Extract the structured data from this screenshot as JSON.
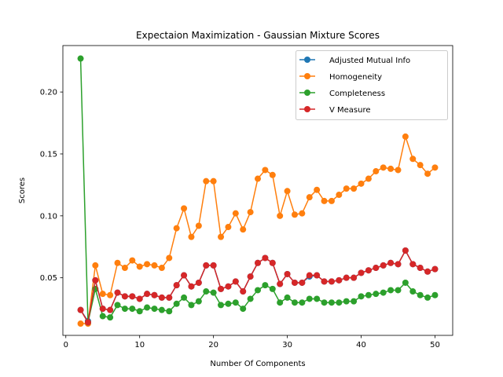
{
  "chart_data": {
    "type": "line",
    "title": "Expectaion Maximization - Gaussian Mixture Scores",
    "xlabel": "Number Of Components",
    "ylabel": "Scores",
    "xlim": [
      -0.4,
      52.4
    ],
    "ylim": [
      0.0035,
      0.2375
    ],
    "xticks": [
      0,
      10,
      20,
      30,
      40,
      50
    ],
    "xtick_labels": [
      "0",
      "10",
      "20",
      "30",
      "40",
      "50"
    ],
    "yticks": [
      0.05,
      0.1,
      0.15,
      0.2
    ],
    "ytick_labels": [
      "0.05",
      "0.10",
      "0.15",
      "0.20"
    ],
    "grid": false,
    "legend_position": "top-right",
    "x": [
      2,
      3,
      4,
      5,
      6,
      7,
      8,
      9,
      10,
      11,
      12,
      13,
      14,
      15,
      16,
      17,
      18,
      19,
      20,
      21,
      22,
      23,
      24,
      25,
      26,
      27,
      28,
      29,
      30,
      31,
      32,
      33,
      34,
      35,
      36,
      37,
      38,
      39,
      40,
      41,
      42,
      43,
      44,
      45,
      46,
      47,
      48,
      49,
      50
    ],
    "series": [
      {
        "name": "Adjusted Mutual Info",
        "color": "#1f77b4",
        "values": [
          0.024,
          0.015,
          0.048,
          0.025,
          0.024,
          0.038,
          0.035,
          0.035,
          0.033,
          0.037,
          0.036,
          0.034,
          0.034,
          0.044,
          0.052,
          0.043,
          0.046,
          0.06,
          0.06,
          0.041,
          0.043,
          0.047,
          0.039,
          0.051,
          0.062,
          0.066,
          0.062,
          0.045,
          0.053,
          0.046,
          0.046,
          0.051,
          0.052,
          0.047,
          0.047,
          0.048,
          0.05,
          0.05,
          0.054,
          0.056,
          0.058,
          0.06,
          0.062,
          0.061,
          0.072,
          0.061,
          0.058,
          0.055,
          0.057
        ]
      },
      {
        "name": "Homogeneity",
        "color": "#ff7f0e",
        "values": [
          0.013,
          0.013,
          0.06,
          0.037,
          0.036,
          0.062,
          0.058,
          0.064,
          0.059,
          0.061,
          0.06,
          0.058,
          0.066,
          0.09,
          0.106,
          0.083,
          0.092,
          0.128,
          0.128,
          0.083,
          0.091,
          0.102,
          0.089,
          0.103,
          0.13,
          0.137,
          0.133,
          0.1,
          0.12,
          0.101,
          0.102,
          0.115,
          0.121,
          0.112,
          0.112,
          0.117,
          0.122,
          0.122,
          0.126,
          0.13,
          0.136,
          0.139,
          0.138,
          0.137,
          0.164,
          0.146,
          0.141,
          0.134,
          0.139
        ]
      },
      {
        "name": "Completeness",
        "color": "#2ca02c",
        "values": [
          0.227,
          0.014,
          0.041,
          0.019,
          0.018,
          0.028,
          0.025,
          0.025,
          0.023,
          0.026,
          0.025,
          0.024,
          0.023,
          0.029,
          0.034,
          0.028,
          0.031,
          0.039,
          0.038,
          0.028,
          0.029,
          0.03,
          0.025,
          0.033,
          0.04,
          0.044,
          0.041,
          0.03,
          0.034,
          0.03,
          0.03,
          0.033,
          0.033,
          0.03,
          0.03,
          0.03,
          0.031,
          0.031,
          0.035,
          0.036,
          0.037,
          0.038,
          0.04,
          0.04,
          0.046,
          0.039,
          0.036,
          0.034,
          0.036
        ]
      },
      {
        "name": "V Measure",
        "color": "#d62728",
        "values": [
          0.024,
          0.014,
          0.048,
          0.025,
          0.024,
          0.038,
          0.035,
          0.035,
          0.033,
          0.037,
          0.036,
          0.034,
          0.034,
          0.044,
          0.052,
          0.043,
          0.046,
          0.06,
          0.06,
          0.041,
          0.043,
          0.047,
          0.039,
          0.051,
          0.062,
          0.066,
          0.062,
          0.045,
          0.053,
          0.046,
          0.046,
          0.052,
          0.052,
          0.047,
          0.047,
          0.048,
          0.05,
          0.05,
          0.054,
          0.056,
          0.058,
          0.06,
          0.062,
          0.061,
          0.072,
          0.061,
          0.058,
          0.055,
          0.057
        ]
      }
    ]
  }
}
